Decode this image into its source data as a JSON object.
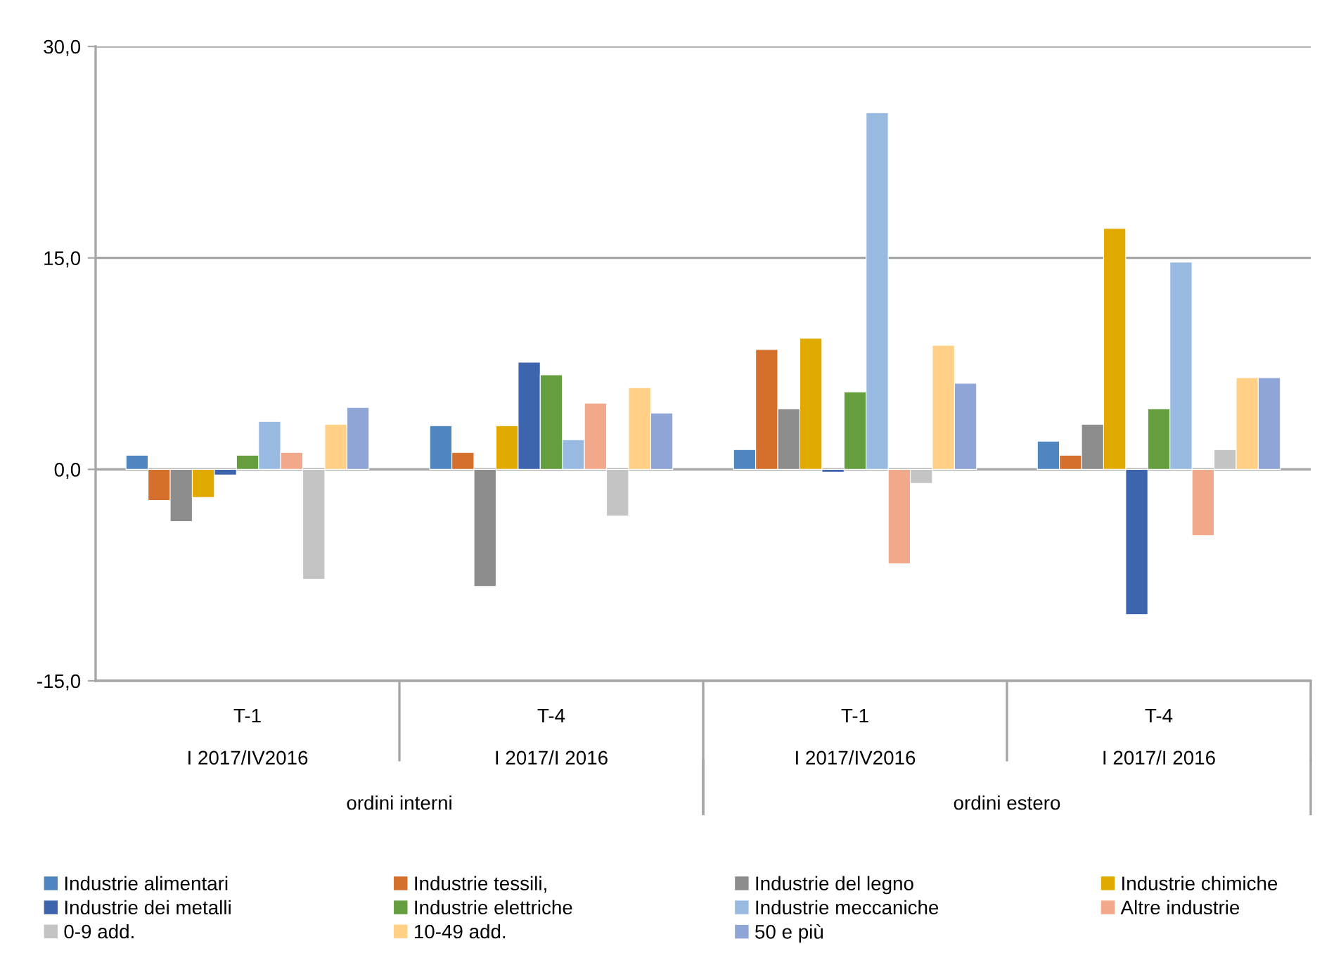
{
  "chart_data": {
    "type": "bar",
    "categories": [
      "T-1\n\nI 2017/IV2016",
      "T-4\n\nI 2017/I 2016",
      "T-1\n\nI 2017/IV2016",
      "T-4\n\nI 2017/I 2016"
    ],
    "annotations": [
      "ordini interni",
      "ordini estero"
    ],
    "series": [
      {
        "name": "Industrie alimentari",
        "color": "#4f86c0",
        "values": [
          1.0,
          3.1,
          1.4,
          2.0
        ]
      },
      {
        "name": "Industrie tessili,",
        "color": "#d46f2c",
        "values": [
          -2.2,
          1.2,
          8.5,
          1.0
        ]
      },
      {
        "name": "Industrie del legno",
        "color": "#8c8c8c",
        "values": [
          -3.7,
          -8.3,
          4.3,
          3.2
        ]
      },
      {
        "name": "Industrie chimiche",
        "color": "#e0aa00",
        "values": [
          -2.0,
          3.1,
          9.3,
          17.1
        ]
      },
      {
        "name": "Industrie dei metalli",
        "color": "#3d65ad",
        "values": [
          -0.4,
          7.6,
          -0.2,
          -10.3
        ]
      },
      {
        "name": "Industrie elettriche",
        "color": "#659d3f",
        "values": [
          1.0,
          6.7,
          5.5,
          4.3
        ]
      },
      {
        "name": "Industrie meccaniche",
        "color": "#99bae0",
        "values": [
          3.4,
          2.1,
          25.3,
          14.7
        ]
      },
      {
        "name": "Altre industrie",
        "color": "#f1a98a",
        "values": [
          1.2,
          4.7,
          -6.7,
          -4.7
        ]
      },
      {
        "name": "0-9 add.",
        "color": "#c4c4c4",
        "values": [
          -7.8,
          -3.3,
          -1.0,
          1.4
        ]
      },
      {
        "name": "10-49 add.",
        "color": "#ffd085",
        "values": [
          3.2,
          5.8,
          8.8,
          6.5
        ]
      },
      {
        "name": "50 e più",
        "color": "#8fa5d6",
        "values": [
          4.4,
          4.0,
          6.1,
          6.5
        ]
      }
    ],
    "ylim": [
      -15,
      30
    ],
    "yticks": [
      {
        "value": -15,
        "label": "-15,0"
      },
      {
        "value": 0,
        "label": "0,0"
      },
      {
        "value": 15,
        "label": "15,0"
      },
      {
        "value": 30,
        "label": "30,0"
      }
    ],
    "grid": "y",
    "legend": "bottom"
  }
}
